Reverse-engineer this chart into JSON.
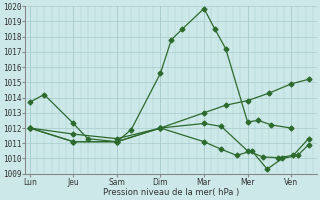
{
  "background_color": "#cde8e8",
  "grid_color": "#aacccc",
  "line_color": "#2d6a2d",
  "x_labels": [
    "Lun",
    "Jeu",
    "Sam",
    "Dim",
    "Mar",
    "Mer",
    "Ven"
  ],
  "xlabel": "Pression niveau de la mer( hPa )",
  "ylim": [
    1009,
    1020
  ],
  "yticks": [
    1009,
    1010,
    1011,
    1012,
    1013,
    1014,
    1015,
    1016,
    1017,
    1018,
    1019,
    1020
  ],
  "xtick_pos": [
    0,
    1,
    2,
    3,
    4,
    5,
    6
  ],
  "xlim": [
    -0.1,
    6.6
  ],
  "lines": [
    {
      "x": [
        0.0,
        0.33,
        1.0,
        1.33,
        2.0,
        2.33,
        3.0,
        3.25,
        3.5,
        4.0,
        4.25,
        4.5,
        5.0,
        5.25,
        5.55,
        6.0
      ],
      "y": [
        1013.7,
        1014.2,
        1012.3,
        1011.3,
        1011.1,
        1011.9,
        1015.6,
        1017.8,
        1018.5,
        1019.85,
        1018.5,
        1017.2,
        1012.4,
        1012.5,
        1012.2,
        1012.0
      ]
    },
    {
      "x": [
        0.0,
        1.0,
        2.0,
        3.0,
        4.0,
        4.5,
        5.0,
        5.5,
        6.0,
        6.4
      ],
      "y": [
        1012.0,
        1011.6,
        1011.3,
        1012.0,
        1013.0,
        1013.5,
        1013.8,
        1014.3,
        1014.9,
        1015.2
      ]
    },
    {
      "x": [
        0.0,
        1.0,
        2.0,
        3.0,
        4.0,
        4.4,
        4.75,
        5.1,
        5.45,
        5.8,
        6.15,
        6.4
      ],
      "y": [
        1012.0,
        1011.1,
        1011.1,
        1012.0,
        1011.1,
        1010.6,
        1010.2,
        1010.5,
        1009.3,
        1010.0,
        1010.2,
        1010.9
      ]
    },
    {
      "x": [
        0.0,
        1.0,
        2.0,
        3.0,
        4.0,
        4.4,
        5.0,
        5.35,
        5.7,
        6.05,
        6.4
      ],
      "y": [
        1012.0,
        1011.1,
        1011.1,
        1012.0,
        1012.3,
        1012.1,
        1010.5,
        1010.1,
        1010.05,
        1010.2,
        1011.3
      ]
    }
  ]
}
